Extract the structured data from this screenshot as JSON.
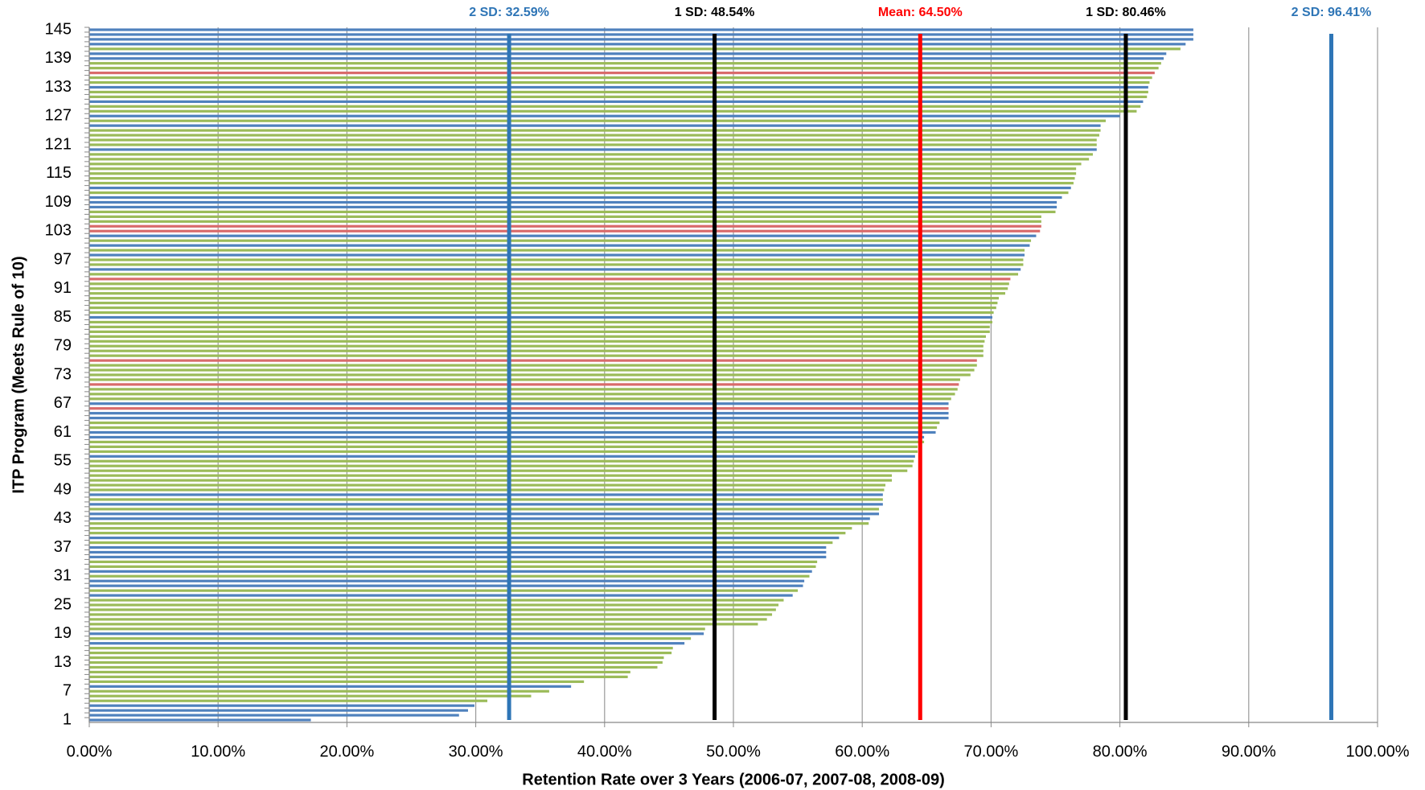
{
  "chart_data": {
    "type": "bar",
    "orientation": "horizontal",
    "x_label": "Retention Rate over 3 Years (2006-07, 2007-08, 2008-09)",
    "y_label": "ITP Program (Meets Rule of 10)",
    "categories": [
      "1",
      null,
      null,
      null,
      null,
      null,
      "7",
      null,
      null,
      null,
      null,
      null,
      "13",
      null,
      null,
      null,
      null,
      null,
      "19",
      null,
      null,
      null,
      null,
      null,
      "25",
      null,
      null,
      null,
      null,
      null,
      "31",
      null,
      null,
      null,
      null,
      null,
      "37",
      null,
      null,
      null,
      null,
      null,
      "43",
      null,
      null,
      null,
      null,
      null,
      "49",
      null,
      null,
      null,
      null,
      null,
      "55",
      null,
      null,
      null,
      null,
      null,
      "61",
      null,
      null,
      null,
      null,
      null,
      "67",
      null,
      null,
      null,
      null,
      null,
      "73",
      null,
      null,
      null,
      null,
      null,
      "79",
      null,
      null,
      null,
      null,
      null,
      "85",
      null,
      null,
      null,
      null,
      null,
      "91",
      null,
      null,
      null,
      null,
      null,
      "97",
      null,
      null,
      null,
      null,
      null,
      "103",
      null,
      null,
      null,
      null,
      null,
      "109",
      null,
      null,
      null,
      null,
      null,
      "115",
      null,
      null,
      null,
      null,
      null,
      "121",
      null,
      null,
      null,
      null,
      null,
      "127",
      null,
      null,
      null,
      null,
      null,
      "133",
      null,
      null,
      null,
      null,
      null,
      "139",
      null,
      null,
      null,
      null,
      null,
      "145"
    ],
    "values": [
      17.2,
      28.7,
      29.4,
      29.9,
      30.9,
      34.3,
      35.7,
      37.4,
      38.4,
      41.8,
      42,
      44.1,
      44.5,
      44.6,
      45.2,
      45.3,
      46.2,
      46.7,
      47.7,
      47.8,
      51.9,
      52.6,
      53,
      53.3,
      53.5,
      53.9,
      54.6,
      55,
      55.4,
      55.5,
      55.9,
      56.1,
      56.4,
      56.5,
      57.2,
      57.2,
      57.2,
      57.7,
      58.2,
      58.7,
      59.2,
      60.5,
      60.6,
      61.3,
      61.3,
      61.6,
      61.6,
      61.6,
      61.7,
      61.8,
      62.3,
      62.3,
      63.5,
      63.9,
      64,
      64.1,
      64.3,
      64.3,
      64.8,
      64.8,
      65.7,
      65.8,
      66,
      66.7,
      66.7,
      66.7,
      66.7,
      66.9,
      67.2,
      67.4,
      67.5,
      67.6,
      68.4,
      68.7,
      68.9,
      68.9,
      69.4,
      69.4,
      69.4,
      69.5,
      69.6,
      69.9,
      69.9,
      70.1,
      70.1,
      70.2,
      70.4,
      70.5,
      70.6,
      71.1,
      71.3,
      71.4,
      71.5,
      72.1,
      72.3,
      72.5,
      72.5,
      72.6,
      72.6,
      73,
      73.1,
      73.5,
      73.8,
      73.9,
      73.9,
      73.9,
      75,
      75.1,
      75.1,
      75.5,
      76,
      76.2,
      76.4,
      76.5,
      76.6,
      76.6,
      77,
      77.6,
      77.9,
      78.2,
      78.2,
      78.2,
      78.4,
      78.5,
      78.5,
      78.9,
      80,
      81.3,
      81.6,
      81.8,
      82.1,
      82.2,
      82.2,
      82.3,
      82.5,
      82.7,
      83,
      83.2,
      83.4,
      83.6,
      84.7,
      85.1,
      85.7,
      85.7,
      85.7
    ],
    "colors": [
      "#4f81bd",
      "#4f81bd",
      "#4f81bd",
      "#4f81bd",
      "#9bbb59",
      "#9bbb59",
      "#9bbb59",
      "#4f81bd",
      "#9bbb59",
      "#9bbb59",
      "#9bbb59",
      "#9bbb59",
      "#9bbb59",
      "#9bbb59",
      "#9bbb59",
      "#9bbb59",
      "#4f81bd",
      "#9bbb59",
      "#4f81bd",
      "#9bbb59",
      "#9bbb59",
      "#9bbb59",
      "#9bbb59",
      "#9bbb59",
      "#9bbb59",
      "#9bbb59",
      "#4f81bd",
      "#9bbb59",
      "#4f81bd",
      "#4f81bd",
      "#9bbb59",
      "#4f81bd",
      "#9bbb59",
      "#9bbb59",
      "#4f81bd",
      "#4f81bd",
      "#4f81bd",
      "#9bbb59",
      "#4f81bd",
      "#9bbb59",
      "#9bbb59",
      "#9bbb59",
      "#4f81bd",
      "#4f81bd",
      "#9bbb59",
      "#4f81bd",
      "#9bbb59",
      "#4f81bd",
      "#9bbb59",
      "#9bbb59",
      "#9bbb59",
      "#9bbb59",
      "#9bbb59",
      "#9bbb59",
      "#9bbb59",
      "#4f81bd",
      "#9bbb59",
      "#9bbb59",
      "#9bbb59",
      "#4f81bd",
      "#4f81bd",
      "#9bbb59",
      "#9bbb59",
      "#4f81bd",
      "#4f81bd",
      "#d96b6b",
      "#4f81bd",
      "#9bbb59",
      "#9bbb59",
      "#9bbb59",
      "#d96b6b",
      "#9bbb59",
      "#9bbb59",
      "#9bbb59",
      "#9bbb59",
      "#d96b6b",
      "#9bbb59",
      "#9bbb59",
      "#9bbb59",
      "#9bbb59",
      "#9bbb59",
      "#9bbb59",
      "#9bbb59",
      "#9bbb59",
      "#4f81bd",
      "#9bbb59",
      "#9bbb59",
      "#9bbb59",
      "#9bbb59",
      "#9bbb59",
      "#9bbb59",
      "#9bbb59",
      "#d96b6b",
      "#9bbb59",
      "#4f81bd",
      "#9bbb59",
      "#9bbb59",
      "#4f81bd",
      "#9bbb59",
      "#4f81bd",
      "#9bbb59",
      "#4f81bd",
      "#d96b6b",
      "#d96b6b",
      "#9bbb59",
      "#9bbb59",
      "#9bbb59",
      "#4f81bd",
      "#4f81bd",
      "#4f81bd",
      "#9bbb59",
      "#4f81bd",
      "#9bbb59",
      "#9bbb59",
      "#9bbb59",
      "#9bbb59",
      "#9bbb59",
      "#9bbb59",
      "#9bbb59",
      "#4f81bd",
      "#9bbb59",
      "#9bbb59",
      "#9bbb59",
      "#9bbb59",
      "#4f81bd",
      "#9bbb59",
      "#4f81bd",
      "#9bbb59",
      "#9bbb59",
      "#4f81bd",
      "#9bbb59",
      "#9bbb59",
      "#4f81bd",
      "#9bbb59",
      "#9bbb59",
      "#d96b6b",
      "#9bbb59",
      "#9bbb59",
      "#4f81bd",
      "#4f81bd",
      "#9bbb59",
      "#4f81bd",
      "#4f81bd",
      "#4f81bd",
      "#4f81bd"
    ],
    "xlim": [
      0,
      100
    ],
    "xticks": [
      {
        "value": 0,
        "label": "0.00%"
      },
      {
        "value": 10,
        "label": "10.00%"
      },
      {
        "value": 20,
        "label": "20.00%"
      },
      {
        "value": 30,
        "label": "30.00%"
      },
      {
        "value": 40,
        "label": "40.00%"
      },
      {
        "value": 50,
        "label": "50.00%"
      },
      {
        "value": 60,
        "label": "60.00%"
      },
      {
        "value": 70,
        "label": "70.00%"
      },
      {
        "value": 80,
        "label": "80.00%"
      },
      {
        "value": 90,
        "label": "90.00%"
      },
      {
        "value": 100,
        "label": "100.00%"
      }
    ],
    "grid": true,
    "reference_lines": [
      {
        "label": "2 SD: 32.59%",
        "value": 32.59,
        "color": "#2e75b6"
      },
      {
        "label": "1 SD: 48.54%",
        "value": 48.54,
        "color": "#000000"
      },
      {
        "label": "Mean: 64.50%",
        "value": 64.5,
        "color": "#ff0000"
      },
      {
        "label": "1 SD: 80.46%",
        "value": 80.46,
        "color": "#000000"
      },
      {
        "label": "2 SD: 96.41%",
        "value": 96.41,
        "color": "#2e75b6"
      }
    ]
  }
}
